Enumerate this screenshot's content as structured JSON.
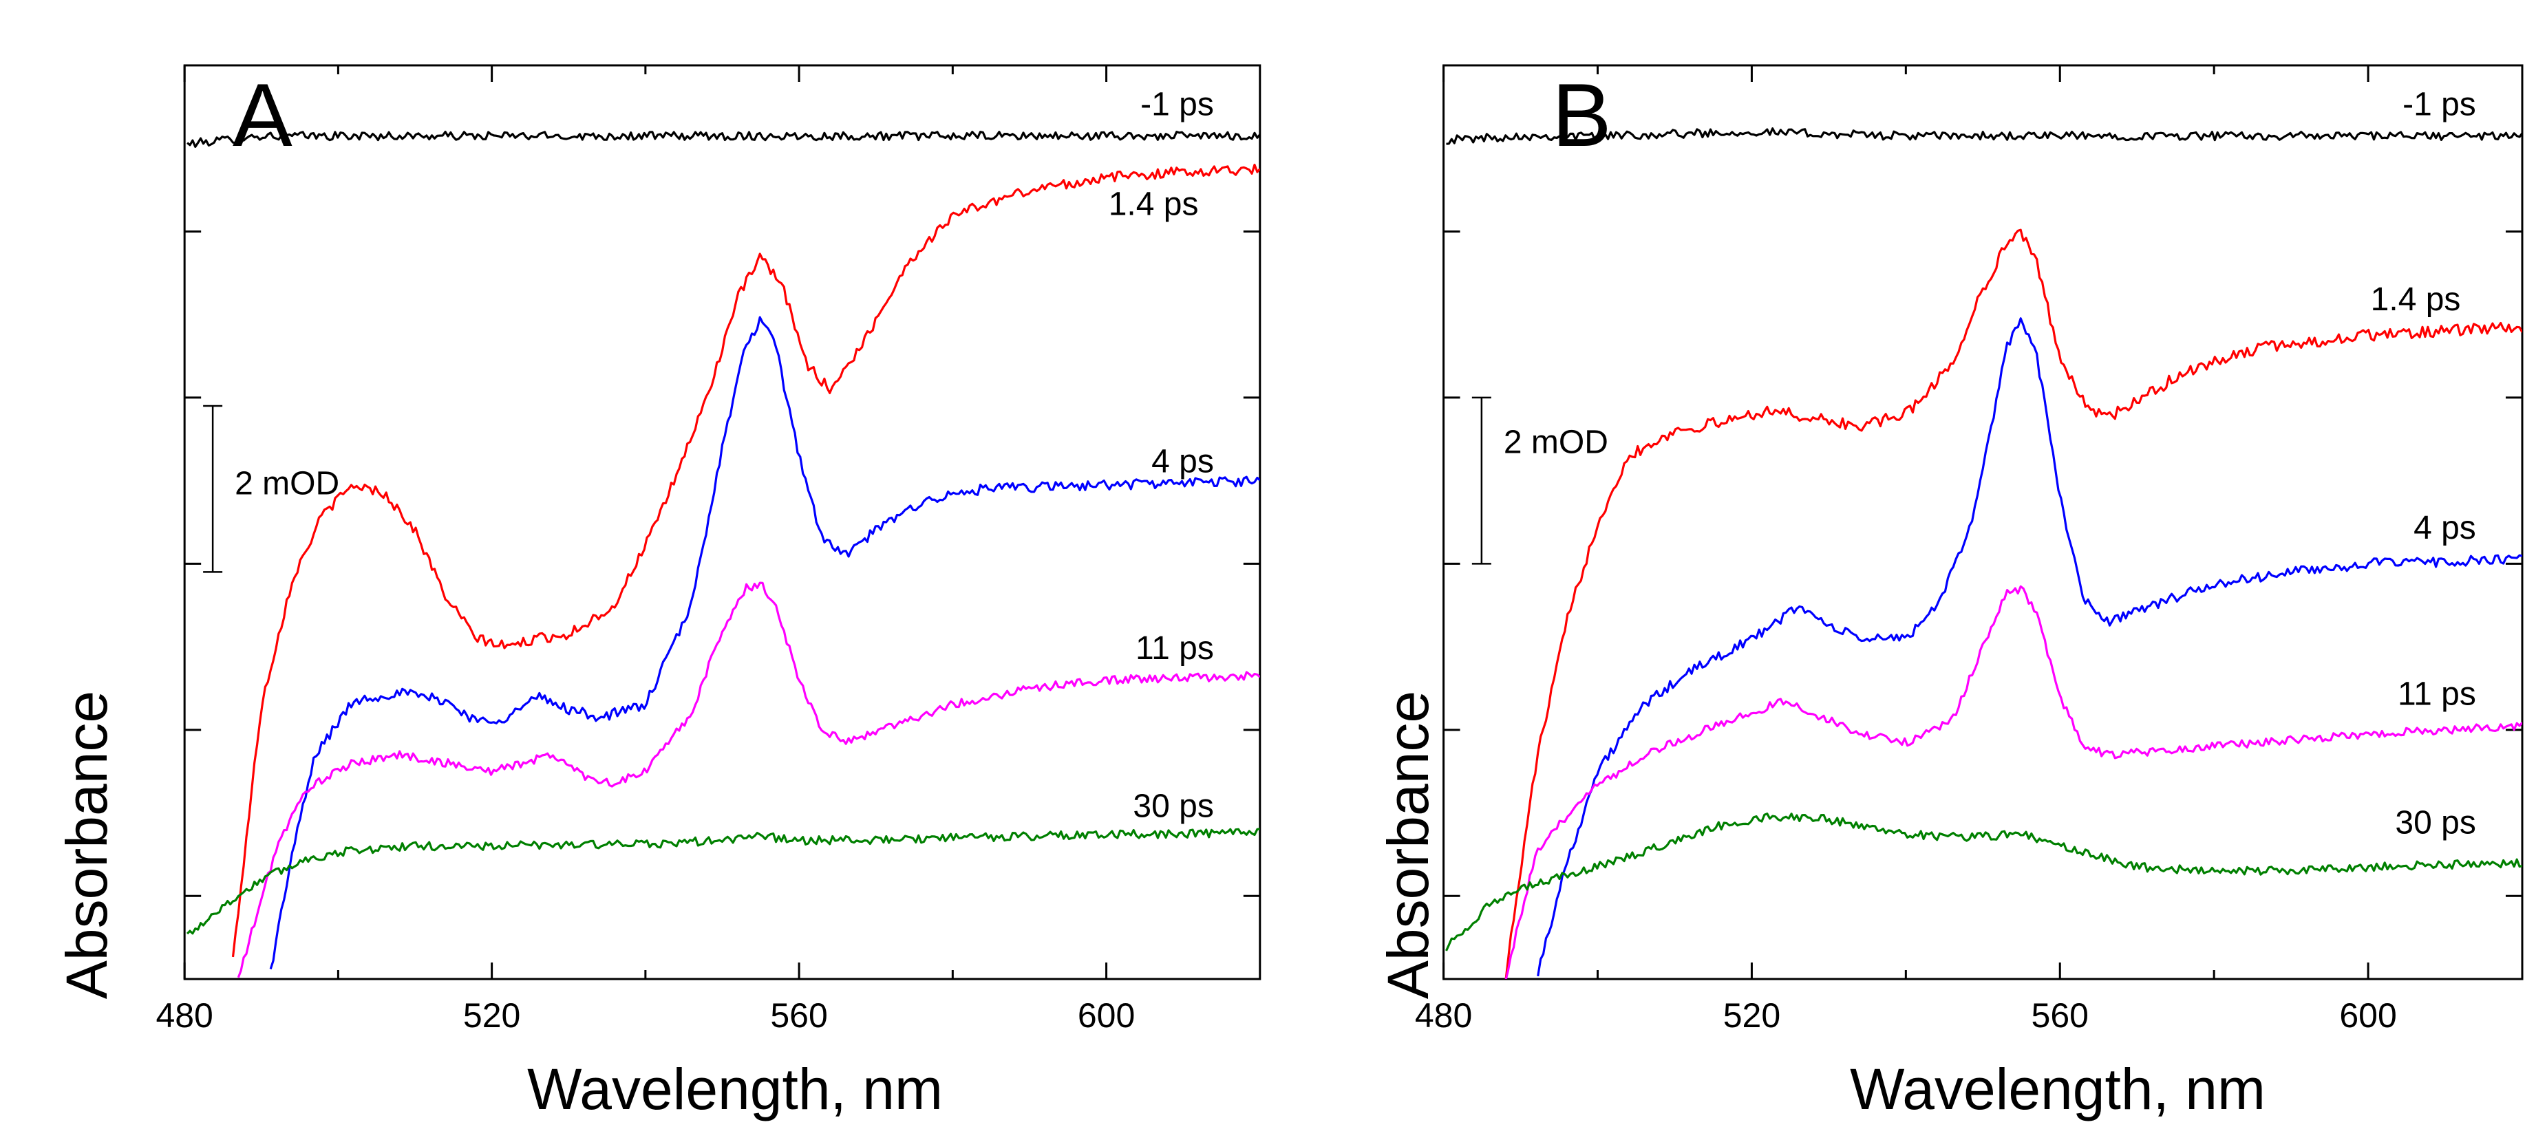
{
  "figure": {
    "ylabel": "Absorbance",
    "xlabel": "Wavelength, nm"
  },
  "chart_data": [
    {
      "type": "line",
      "panel": "A",
      "title": "A",
      "xlabel": "Wavelength, nm",
      "ylabel": "Absorbance",
      "xlim": [
        480,
        620
      ],
      "xticks": [
        480,
        520,
        560,
        600
      ],
      "xtick_labels": [
        "480",
        "520",
        "560",
        "600"
      ],
      "ylim": [
        0,
        11
      ],
      "y_units_note": "mOD, arbitrary offset",
      "scale_bar": {
        "label": "2 mOD",
        "value": 2
      },
      "series": [
        {
          "name": "-1 ps",
          "color": "#000000",
          "noise": 0.05,
          "points": [
            [
              480,
              10.05
            ],
            [
              490,
              10.15
            ],
            [
              500,
              10.15
            ],
            [
              520,
              10.15
            ],
            [
              540,
              10.15
            ],
            [
              560,
              10.15
            ],
            [
              580,
              10.15
            ],
            [
              600,
              10.15
            ],
            [
              620,
              10.15
            ]
          ]
        },
        {
          "name": "1.4 ps",
          "color": "#ff0000",
          "noise": 0.06,
          "points": [
            [
              486,
              0
            ],
            [
              490,
              3.3
            ],
            [
              494,
              4.8
            ],
            [
              498,
              5.6
            ],
            [
              502,
              5.95
            ],
            [
              506,
              5.85
            ],
            [
              510,
              5.4
            ],
            [
              514,
              4.6
            ],
            [
              518,
              4.1
            ],
            [
              522,
              4.0
            ],
            [
              526,
              4.1
            ],
            [
              530,
              4.15
            ],
            [
              536,
              4.5
            ],
            [
              542,
              5.6
            ],
            [
              548,
              7.0
            ],
            [
              552,
              8.2
            ],
            [
              555,
              8.7
            ],
            [
              558,
              8.3
            ],
            [
              561,
              7.4
            ],
            [
              564,
              7.1
            ],
            [
              568,
              7.6
            ],
            [
              574,
              8.6
            ],
            [
              580,
              9.2
            ],
            [
              590,
              9.5
            ],
            [
              600,
              9.65
            ],
            [
              610,
              9.72
            ],
            [
              620,
              9.75
            ]
          ]
        },
        {
          "name": "4 ps",
          "color": "#0000ff",
          "noise": 0.06,
          "points": [
            [
              491,
              0
            ],
            [
              494,
              1.5
            ],
            [
              497,
              2.7
            ],
            [
              502,
              3.35
            ],
            [
              508,
              3.45
            ],
            [
              514,
              3.35
            ],
            [
              518,
              3.1
            ],
            [
              522,
              3.15
            ],
            [
              526,
              3.4
            ],
            [
              530,
              3.25
            ],
            [
              534,
              3.15
            ],
            [
              540,
              3.3
            ],
            [
              546,
              4.5
            ],
            [
              550,
              6.4
            ],
            [
              553,
              7.6
            ],
            [
              555,
              7.95
            ],
            [
              557,
              7.6
            ],
            [
              560,
              6.3
            ],
            [
              563,
              5.3
            ],
            [
              566,
              5.1
            ],
            [
              570,
              5.4
            ],
            [
              576,
              5.75
            ],
            [
              584,
              5.9
            ],
            [
              600,
              5.95
            ],
            [
              620,
              6.0
            ]
          ]
        },
        {
          "name": "11 ps",
          "color": "#ff00ff",
          "noise": 0.05,
          "points": [
            [
              487,
              0
            ],
            [
              492,
              1.6
            ],
            [
              496,
              2.3
            ],
            [
              502,
              2.6
            ],
            [
              508,
              2.7
            ],
            [
              514,
              2.6
            ],
            [
              520,
              2.5
            ],
            [
              524,
              2.6
            ],
            [
              528,
              2.7
            ],
            [
              532,
              2.45
            ],
            [
              536,
              2.35
            ],
            [
              540,
              2.5
            ],
            [
              546,
              3.2
            ],
            [
              550,
              4.2
            ],
            [
              553,
              4.7
            ],
            [
              555,
              4.75
            ],
            [
              557,
              4.5
            ],
            [
              560,
              3.6
            ],
            [
              563,
              3.0
            ],
            [
              566,
              2.85
            ],
            [
              572,
              3.05
            ],
            [
              580,
              3.3
            ],
            [
              590,
              3.5
            ],
            [
              600,
              3.6
            ],
            [
              620,
              3.65
            ]
          ]
        },
        {
          "name": "30 ps",
          "color": "#008000",
          "noise": 0.05,
          "points": [
            [
              480,
              0.5
            ],
            [
              484,
              0.8
            ],
            [
              490,
              1.2
            ],
            [
              496,
              1.45
            ],
            [
              502,
              1.55
            ],
            [
              510,
              1.6
            ],
            [
              520,
              1.6
            ],
            [
              530,
              1.62
            ],
            [
              540,
              1.62
            ],
            [
              550,
              1.67
            ],
            [
              555,
              1.72
            ],
            [
              560,
              1.67
            ],
            [
              570,
              1.67
            ],
            [
              580,
              1.7
            ],
            [
              590,
              1.72
            ],
            [
              600,
              1.74
            ],
            [
              620,
              1.76
            ]
          ]
        }
      ],
      "series_labels": [
        {
          "name": "-1 ps",
          "x": 614,
          "y": 10.4
        },
        {
          "name": "1.4 ps",
          "x": 612,
          "y": 9.2
        },
        {
          "name": "4 ps",
          "x": 614,
          "y": 6.1
        },
        {
          "name": "11 ps",
          "x": 614,
          "y": 3.85
        },
        {
          "name": "30 ps",
          "x": 614,
          "y": 1.95
        }
      ]
    },
    {
      "type": "line",
      "panel": "B",
      "title": "B",
      "xlabel": "Wavelength, nm",
      "ylabel": "Absorbance",
      "xlim": [
        480,
        620
      ],
      "xticks": [
        480,
        520,
        560,
        600
      ],
      "xtick_labels": [
        "480",
        "520",
        "560",
        "600"
      ],
      "ylim": [
        0,
        11
      ],
      "y_units_note": "mOD, arbitrary offset",
      "scale_bar": {
        "label": "2 mOD",
        "value": 2
      },
      "series": [
        {
          "name": "-1 ps",
          "color": "#000000",
          "noise": 0.05,
          "points": [
            [
              480,
              10.1
            ],
            [
              490,
              10.15
            ],
            [
              500,
              10.15
            ],
            [
              520,
              10.2
            ],
            [
              540,
              10.15
            ],
            [
              560,
              10.15
            ],
            [
              580,
              10.15
            ],
            [
              600,
              10.15
            ],
            [
              620,
              10.15
            ]
          ]
        },
        {
          "name": "1.4 ps",
          "color": "#ff0000",
          "noise": 0.07,
          "points": [
            [
              488,
              0
            ],
            [
              492,
              2.6
            ],
            [
              496,
              4.3
            ],
            [
              500,
              5.5
            ],
            [
              504,
              6.3
            ],
            [
              510,
              6.6
            ],
            [
              516,
              6.7
            ],
            [
              522,
              6.85
            ],
            [
              528,
              6.75
            ],
            [
              534,
              6.65
            ],
            [
              540,
              6.8
            ],
            [
              546,
              7.4
            ],
            [
              550,
              8.3
            ],
            [
              553,
              8.85
            ],
            [
              555,
              9.0
            ],
            [
              557,
              8.6
            ],
            [
              560,
              7.5
            ],
            [
              563,
              6.95
            ],
            [
              566,
              6.75
            ],
            [
              570,
              6.95
            ],
            [
              576,
              7.3
            ],
            [
              586,
              7.6
            ],
            [
              600,
              7.75
            ],
            [
              620,
              7.85
            ]
          ]
        },
        {
          "name": "4 ps",
          "color": "#0000ff",
          "noise": 0.06,
          "points": [
            [
              492,
              0
            ],
            [
              496,
              1.4
            ],
            [
              500,
              2.5
            ],
            [
              506,
              3.3
            ],
            [
              512,
              3.7
            ],
            [
              518,
              4.0
            ],
            [
              522,
              4.2
            ],
            [
              526,
              4.5
            ],
            [
              530,
              4.25
            ],
            [
              534,
              4.1
            ],
            [
              540,
              4.1
            ],
            [
              544,
              4.5
            ],
            [
              548,
              5.3
            ],
            [
              551,
              6.6
            ],
            [
              553,
              7.6
            ],
            [
              555,
              7.95
            ],
            [
              557,
              7.5
            ],
            [
              560,
              5.8
            ],
            [
              563,
              4.6
            ],
            [
              566,
              4.3
            ],
            [
              572,
              4.5
            ],
            [
              580,
              4.75
            ],
            [
              590,
              4.9
            ],
            [
              600,
              5.0
            ],
            [
              620,
              5.05
            ]
          ]
        },
        {
          "name": "11 ps",
          "color": "#ff00ff",
          "noise": 0.05,
          "points": [
            [
              488,
              0
            ],
            [
              492,
              1.5
            ],
            [
              498,
              2.2
            ],
            [
              506,
              2.7
            ],
            [
              514,
              3.0
            ],
            [
              520,
              3.2
            ],
            [
              524,
              3.35
            ],
            [
              528,
              3.2
            ],
            [
              534,
              2.95
            ],
            [
              540,
              2.85
            ],
            [
              546,
              3.1
            ],
            [
              550,
              4.0
            ],
            [
              553,
              4.65
            ],
            [
              555,
              4.7
            ],
            [
              557,
              4.4
            ],
            [
              560,
              3.4
            ],
            [
              563,
              2.8
            ],
            [
              566,
              2.7
            ],
            [
              574,
              2.75
            ],
            [
              586,
              2.85
            ],
            [
              600,
              2.95
            ],
            [
              620,
              3.05
            ]
          ]
        },
        {
          "name": "30 ps",
          "color": "#008000",
          "noise": 0.05,
          "points": [
            [
              480,
              0.35
            ],
            [
              486,
              0.9
            ],
            [
              492,
              1.15
            ],
            [
              500,
              1.35
            ],
            [
              508,
              1.6
            ],
            [
              516,
              1.85
            ],
            [
              522,
              1.95
            ],
            [
              528,
              1.95
            ],
            [
              534,
              1.85
            ],
            [
              540,
              1.75
            ],
            [
              548,
              1.7
            ],
            [
              555,
              1.75
            ],
            [
              562,
              1.55
            ],
            [
              570,
              1.35
            ],
            [
              580,
              1.3
            ],
            [
              590,
              1.3
            ],
            [
              600,
              1.35
            ],
            [
              620,
              1.4
            ]
          ]
        }
      ],
      "series_labels": [
        {
          "name": "-1 ps",
          "x": 614,
          "y": 10.4
        },
        {
          "name": "1.4 ps",
          "x": 612,
          "y": 8.05
        },
        {
          "name": "4 ps",
          "x": 614,
          "y": 5.3
        },
        {
          "name": "11 ps",
          "x": 614,
          "y": 3.3
        },
        {
          "name": "30 ps",
          "x": 614,
          "y": 1.75
        }
      ]
    }
  ]
}
